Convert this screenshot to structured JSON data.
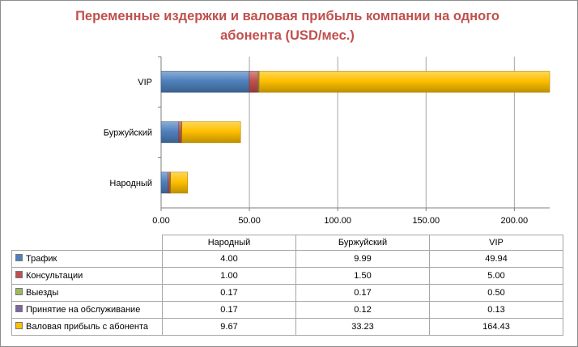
{
  "chart_data": {
    "type": "bar",
    "orientation": "horizontal",
    "stacked": true,
    "title": "Переменные издержки и валовая прибыль компании на одного абонента (USD/мес.)",
    "categories": [
      "Народный",
      "Буржуйский",
      "VIP"
    ],
    "series": [
      {
        "name": "Трафик",
        "color": "#4f81bd",
        "values": [
          4.0,
          9.99,
          49.94
        ]
      },
      {
        "name": "Консультации",
        "color": "#c0504d",
        "values": [
          1.0,
          1.5,
          5.0
        ]
      },
      {
        "name": "Выезды",
        "color": "#9bbb59",
        "values": [
          0.17,
          0.17,
          0.5
        ]
      },
      {
        "name": "Принятие на обслуживание",
        "color": "#8064a2",
        "values": [
          0.17,
          0.12,
          0.13
        ]
      },
      {
        "name": "Валовая прибыль с абонента",
        "color": "#ffc000",
        "values": [
          9.67,
          33.23,
          164.43
        ]
      }
    ],
    "value_labels": [
      [
        "4.00",
        "9.99",
        "49.94"
      ],
      [
        "1.00",
        "1.50",
        "5.00"
      ],
      [
        "0.17",
        "0.17",
        "0.50"
      ],
      [
        "0.17",
        "0.12",
        "0.13"
      ],
      [
        "9.67",
        "33.23",
        "164.43"
      ]
    ],
    "xlim": [
      0,
      220
    ],
    "xticks": [
      "0.00",
      "50.00",
      "100.00",
      "150.00",
      "200.00"
    ],
    "xtick_values": [
      0,
      50,
      100,
      150,
      200
    ],
    "grid": true,
    "legend": "data-table"
  }
}
